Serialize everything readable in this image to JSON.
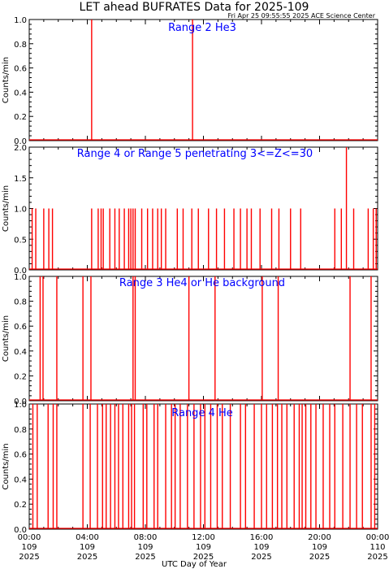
{
  "header": {
    "title": "LET ahead BUFRATES Data for 2025-109",
    "timestamp": "Fri Apr 25 09:55:55 2025 ACE Science Center"
  },
  "colors": {
    "data": "#ff0000",
    "label": "#0000ff",
    "axis": "#000000"
  },
  "chart_data": [
    {
      "type": "line",
      "title": "Range 2 He3",
      "ylabel": "Counts/min",
      "ylim": [
        0,
        1.0
      ],
      "yticks": [
        0.0,
        0.2,
        0.4,
        0.6,
        0.8,
        1.0
      ],
      "ytick_labels": [
        "0.0",
        "0.2",
        "0.4",
        "0.6",
        "0.8",
        "1.0"
      ],
      "xlim": [
        0,
        24
      ],
      "spikes": [
        {
          "x": 4.3,
          "y": 1.0
        },
        {
          "x": 11.25,
          "y": 1.0
        }
      ]
    },
    {
      "type": "line",
      "title": "Range 4 or Range 5 penetrating 3<=Z<=30",
      "ylabel": "Counts/min",
      "ylim": [
        0,
        2.0
      ],
      "yticks": [
        0.0,
        0.5,
        1.0,
        1.5,
        2.0
      ],
      "ytick_labels": [
        "0.0",
        "0.5",
        "1.0",
        "1.5",
        "2.0"
      ],
      "xlim": [
        0,
        24
      ],
      "spikes": [
        {
          "x": 0.2,
          "y": 1.0
        },
        {
          "x": 0.45,
          "y": 1.0
        },
        {
          "x": 1.0,
          "y": 1.0
        },
        {
          "x": 1.35,
          "y": 1.0
        },
        {
          "x": 1.6,
          "y": 1.0
        },
        {
          "x": 4.3,
          "y": 1.0
        },
        {
          "x": 4.75,
          "y": 1.0
        },
        {
          "x": 4.95,
          "y": 1.0
        },
        {
          "x": 5.1,
          "y": 1.0
        },
        {
          "x": 5.55,
          "y": 1.0
        },
        {
          "x": 5.9,
          "y": 1.0
        },
        {
          "x": 6.2,
          "y": 1.0
        },
        {
          "x": 6.55,
          "y": 1.0
        },
        {
          "x": 6.85,
          "y": 1.0
        },
        {
          "x": 7.0,
          "y": 1.0
        },
        {
          "x": 7.15,
          "y": 1.0
        },
        {
          "x": 7.3,
          "y": 1.0
        },
        {
          "x": 7.75,
          "y": 1.0
        },
        {
          "x": 8.15,
          "y": 1.0
        },
        {
          "x": 8.5,
          "y": 1.0
        },
        {
          "x": 8.85,
          "y": 1.0
        },
        {
          "x": 9.1,
          "y": 1.0
        },
        {
          "x": 9.4,
          "y": 1.0
        },
        {
          "x": 10.2,
          "y": 1.0
        },
        {
          "x": 10.6,
          "y": 1.0
        },
        {
          "x": 11.2,
          "y": 1.0
        },
        {
          "x": 11.65,
          "y": 1.0
        },
        {
          "x": 12.35,
          "y": 1.0
        },
        {
          "x": 12.9,
          "y": 1.0
        },
        {
          "x": 13.45,
          "y": 1.0
        },
        {
          "x": 14.1,
          "y": 1.0
        },
        {
          "x": 14.55,
          "y": 1.0
        },
        {
          "x": 15.0,
          "y": 1.0
        },
        {
          "x": 15.3,
          "y": 1.0
        },
        {
          "x": 15.9,
          "y": 1.0
        },
        {
          "x": 16.7,
          "y": 1.0
        },
        {
          "x": 17.2,
          "y": 1.0
        },
        {
          "x": 18.0,
          "y": 1.0
        },
        {
          "x": 18.7,
          "y": 1.0
        },
        {
          "x": 21.05,
          "y": 1.0
        },
        {
          "x": 21.5,
          "y": 1.0
        },
        {
          "x": 21.85,
          "y": 2.0
        },
        {
          "x": 22.35,
          "y": 1.0
        },
        {
          "x": 23.35,
          "y": 1.0
        },
        {
          "x": 23.7,
          "y": 1.0
        },
        {
          "x": 23.9,
          "y": 1.0
        }
      ]
    },
    {
      "type": "line",
      "title": "Range 3 He4 or He background",
      "ylabel": "Counts/min",
      "ylim": [
        0,
        1.0
      ],
      "yticks": [
        0.0,
        0.2,
        0.4,
        0.6,
        0.8,
        1.0
      ],
      "ytick_labels": [
        "0.0",
        "0.2",
        "0.4",
        "0.6",
        "0.8",
        "1.0"
      ],
      "xlim": [
        0,
        24
      ],
      "spikes": [
        {
          "x": 0.75,
          "y": 1.0
        },
        {
          "x": 0.95,
          "y": 1.0
        },
        {
          "x": 1.9,
          "y": 1.0
        },
        {
          "x": 3.7,
          "y": 1.0
        },
        {
          "x": 4.25,
          "y": 1.0
        },
        {
          "x": 7.15,
          "y": 1.0
        },
        {
          "x": 7.3,
          "y": 1.0
        },
        {
          "x": 11.0,
          "y": 1.0
        },
        {
          "x": 12.8,
          "y": 1.0
        },
        {
          "x": 16.05,
          "y": 1.0
        },
        {
          "x": 17.15,
          "y": 1.0
        },
        {
          "x": 22.1,
          "y": 1.0
        },
        {
          "x": 23.55,
          "y": 1.0
        }
      ]
    },
    {
      "type": "line",
      "title": "Range 4 He",
      "ylabel": "Counts/min",
      "ylim": [
        0,
        1.0
      ],
      "yticks": [
        0.0,
        0.2,
        0.4,
        0.6,
        0.8,
        1.0
      ],
      "ytick_labels": [
        "0.0",
        "0.2",
        "0.4",
        "0.6",
        "0.8",
        "1.0"
      ],
      "xlim": [
        0,
        24
      ],
      "xlabel": "UTC Day of Year",
      "xticks": [
        0,
        4,
        8,
        12,
        16,
        20,
        24
      ],
      "xtick_labels": [
        [
          "00:00",
          "109",
          "2025"
        ],
        [
          "04:00",
          "109",
          "2025"
        ],
        [
          "08:00",
          "109",
          "2025"
        ],
        [
          "12:00",
          "109",
          "2025"
        ],
        [
          "16:00",
          "109",
          "2025"
        ],
        [
          "20:00",
          "109",
          "2025"
        ],
        [
          "00:00",
          "110",
          "2025"
        ]
      ],
      "spikes": [
        {
          "x": 0.25,
          "y": 1.0
        },
        {
          "x": 0.55,
          "y": 1.0
        },
        {
          "x": 1.3,
          "y": 1.0
        },
        {
          "x": 1.65,
          "y": 1.0
        },
        {
          "x": 1.9,
          "y": 1.0
        },
        {
          "x": 3.7,
          "y": 1.0
        },
        {
          "x": 4.2,
          "y": 1.0
        },
        {
          "x": 4.7,
          "y": 1.0
        },
        {
          "x": 5.05,
          "y": 1.0
        },
        {
          "x": 5.3,
          "y": 1.0
        },
        {
          "x": 5.6,
          "y": 1.0
        },
        {
          "x": 5.9,
          "y": 1.0
        },
        {
          "x": 6.15,
          "y": 1.0
        },
        {
          "x": 6.45,
          "y": 1.0
        },
        {
          "x": 6.85,
          "y": 1.0
        },
        {
          "x": 7.05,
          "y": 1.0
        },
        {
          "x": 7.25,
          "y": 1.0
        },
        {
          "x": 7.85,
          "y": 1.0
        },
        {
          "x": 8.1,
          "y": 1.0
        },
        {
          "x": 8.6,
          "y": 1.0
        },
        {
          "x": 8.85,
          "y": 1.0
        },
        {
          "x": 9.4,
          "y": 1.0
        },
        {
          "x": 9.8,
          "y": 1.0
        },
        {
          "x": 10.05,
          "y": 1.0
        },
        {
          "x": 10.4,
          "y": 1.0
        },
        {
          "x": 10.9,
          "y": 1.0
        },
        {
          "x": 11.35,
          "y": 1.0
        },
        {
          "x": 11.8,
          "y": 1.0
        },
        {
          "x": 12.1,
          "y": 1.0
        },
        {
          "x": 12.5,
          "y": 1.0
        },
        {
          "x": 12.95,
          "y": 1.0
        },
        {
          "x": 13.3,
          "y": 1.0
        },
        {
          "x": 13.85,
          "y": 1.0
        },
        {
          "x": 14.55,
          "y": 1.0
        },
        {
          "x": 14.9,
          "y": 1.0
        },
        {
          "x": 15.5,
          "y": 1.0
        },
        {
          "x": 16.0,
          "y": 1.0
        },
        {
          "x": 16.35,
          "y": 1.0
        },
        {
          "x": 16.75,
          "y": 1.0
        },
        {
          "x": 17.1,
          "y": 1.0
        },
        {
          "x": 17.4,
          "y": 1.0
        },
        {
          "x": 17.75,
          "y": 1.0
        },
        {
          "x": 18.25,
          "y": 1.0
        },
        {
          "x": 18.6,
          "y": 1.0
        },
        {
          "x": 18.8,
          "y": 1.0
        },
        {
          "x": 19.05,
          "y": 1.0
        },
        {
          "x": 19.4,
          "y": 1.0
        },
        {
          "x": 19.75,
          "y": 1.0
        },
        {
          "x": 20.25,
          "y": 1.0
        },
        {
          "x": 20.7,
          "y": 1.0
        },
        {
          "x": 21.05,
          "y": 1.0
        },
        {
          "x": 21.6,
          "y": 1.0
        },
        {
          "x": 22.1,
          "y": 1.0
        },
        {
          "x": 22.55,
          "y": 1.0
        },
        {
          "x": 22.95,
          "y": 1.0
        },
        {
          "x": 23.55,
          "y": 1.0
        },
        {
          "x": 23.8,
          "y": 1.0
        }
      ]
    }
  ]
}
